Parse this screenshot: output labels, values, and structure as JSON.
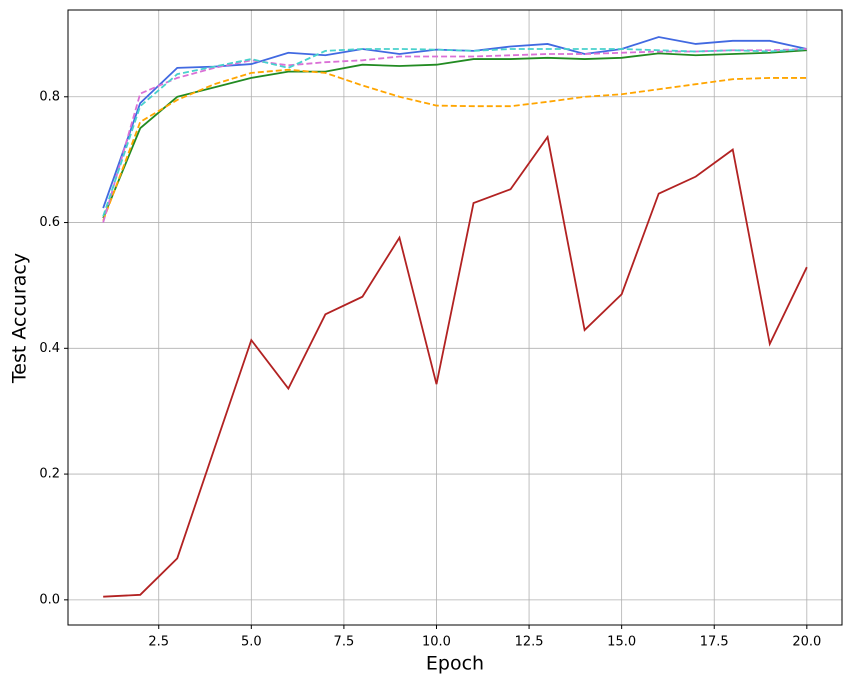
{
  "chart_data": {
    "type": "line",
    "x_label": "Epoch",
    "y_label": "Test Accuracy",
    "x": [
      1,
      2,
      3,
      4,
      5,
      6,
      7,
      8,
      9,
      10,
      11,
      12,
      13,
      14,
      15,
      16,
      17,
      18,
      19,
      20
    ],
    "series": [
      {
        "color": "#b22222",
        "dashed": false,
        "values": [
          0.005,
          0.008,
          0.066,
          0.24,
          0.413,
          0.336,
          0.454,
          0.482,
          0.576,
          0.343,
          0.631,
          0.653,
          0.736,
          0.429,
          0.486,
          0.646,
          0.673,
          0.716,
          0.407,
          0.529
        ]
      },
      {
        "color": "#4169e1",
        "dashed": false,
        "values": [
          0.623,
          0.79,
          0.846,
          0.848,
          0.852,
          0.87,
          0.866,
          0.876,
          0.868,
          0.875,
          0.873,
          0.88,
          0.884,
          0.868,
          0.876,
          0.895,
          0.884,
          0.889,
          0.889,
          0.876
        ]
      },
      {
        "color": "#228b22",
        "dashed": false,
        "values": [
          0.607,
          0.75,
          0.8,
          0.815,
          0.83,
          0.84,
          0.84,
          0.851,
          0.849,
          0.851,
          0.86,
          0.86,
          0.862,
          0.86,
          0.862,
          0.869,
          0.866,
          0.868,
          0.87,
          0.874
        ]
      },
      {
        "color": "#ffa500",
        "dashed": true,
        "values": [
          0.603,
          0.76,
          0.795,
          0.82,
          0.838,
          0.843,
          0.838,
          0.818,
          0.8,
          0.786,
          0.785,
          0.785,
          0.792,
          0.8,
          0.804,
          0.812,
          0.82,
          0.828,
          0.83,
          0.83
        ]
      },
      {
        "color": "#da70d6",
        "dashed": true,
        "values": [
          0.6,
          0.805,
          0.83,
          0.846,
          0.858,
          0.85,
          0.855,
          0.858,
          0.864,
          0.864,
          0.864,
          0.866,
          0.868,
          0.868,
          0.87,
          0.872,
          0.872,
          0.874,
          0.874,
          0.876
        ]
      },
      {
        "color": "#48d1cc",
        "dashed": true,
        "values": [
          0.61,
          0.785,
          0.836,
          0.848,
          0.86,
          0.846,
          0.873,
          0.876,
          0.876,
          0.875,
          0.873,
          0.876,
          0.876,
          0.876,
          0.876,
          0.874,
          0.872,
          0.874,
          0.872,
          0.876
        ]
      }
    ],
    "xlim": [
      0.05,
      20.95
    ],
    "xticks": [
      2.5,
      {
        "value": 5,
        "label": "5.0"
      },
      7.5,
      {
        "value": 10,
        "label": "10.0"
      },
      12.5,
      {
        "value": 15,
        "label": "15.0"
      },
      17.5,
      {
        "value": 20,
        "label": "20.0"
      }
    ],
    "ylim": [
      -0.04,
      0.938
    ],
    "yticks": [
      {
        "value": 0,
        "label": "0.0"
      },
      0.2,
      0.4,
      0.6,
      0.8
    ],
    "grid": true
  }
}
